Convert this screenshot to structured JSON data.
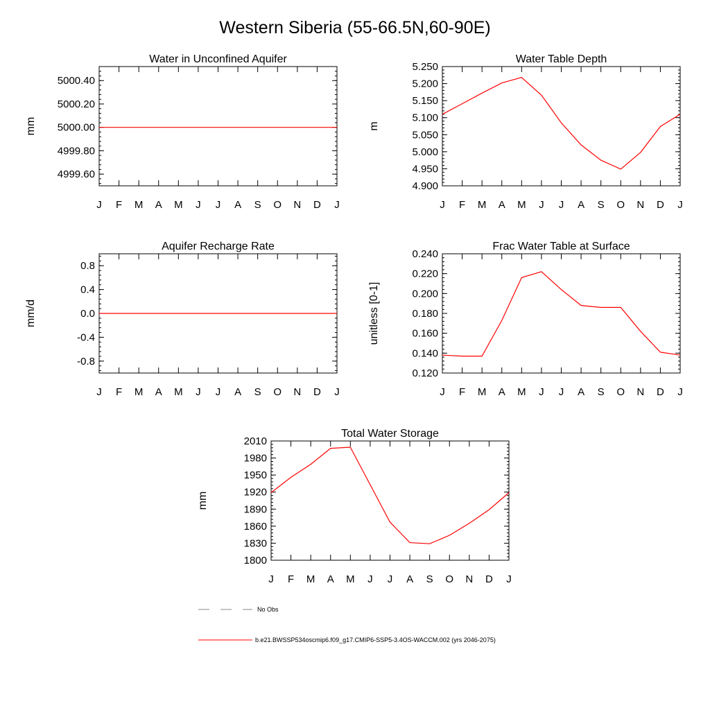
{
  "page": {
    "title": "Western Siberia (55-66.5N,60-90E)"
  },
  "months": [
    "J",
    "F",
    "M",
    "A",
    "M",
    "J",
    "J",
    "A",
    "S",
    "O",
    "N",
    "D",
    "J"
  ],
  "line_color": "#ff0000",
  "chart_data": [
    {
      "id": "water-unconfined-aquifer",
      "type": "line",
      "title": "Water in Unconfined Aquifer",
      "ylabel": "mm",
      "ylim": [
        4999.5,
        5000.52
      ],
      "yticks": [
        4999.6,
        4999.8,
        5000.0,
        5000.2,
        5000.4
      ],
      "ytick_labels": [
        "4999.60",
        "4999.80",
        "5000.00",
        "5000.20",
        "5000.40"
      ],
      "values": [
        5000.0,
        5000.0,
        5000.0,
        5000.0,
        5000.0,
        5000.0,
        5000.0,
        5000.0,
        5000.0,
        5000.0,
        5000.0,
        5000.0,
        5000.0
      ]
    },
    {
      "id": "water-table-depth",
      "type": "line",
      "title": "Water Table Depth",
      "ylabel": "m",
      "ylim": [
        4.9,
        5.25
      ],
      "yticks": [
        4.9,
        4.95,
        5.0,
        5.05,
        5.1,
        5.15,
        5.2,
        5.25
      ],
      "ytick_labels": [
        "4.900",
        "4.950",
        "5.000",
        "5.050",
        "5.100",
        "5.150",
        "5.200",
        "5.250"
      ],
      "values": [
        5.11,
        5.141,
        5.172,
        5.202,
        5.218,
        5.166,
        5.085,
        5.02,
        4.975,
        4.949,
        4.998,
        5.074,
        5.11
      ]
    },
    {
      "id": "aquifer-recharge-rate",
      "type": "line",
      "title": "Aquifer Recharge Rate",
      "ylabel": "mm/d",
      "ylim": [
        -1.0,
        1.0
      ],
      "yticks": [
        -0.8,
        -0.4,
        0.0,
        0.4,
        0.8
      ],
      "ytick_labels": [
        "-0.8",
        "-0.4",
        "0.0",
        "0.4",
        "0.8"
      ],
      "values": [
        0,
        0,
        0,
        0,
        0,
        0,
        0,
        0,
        0,
        0,
        0,
        0,
        0
      ]
    },
    {
      "id": "frac-water-table-surface",
      "type": "line",
      "title": "Frac Water Table at Surface",
      "ylabel": "unitless [0-1]",
      "ylim": [
        0.12,
        0.24
      ],
      "yticks": [
        0.12,
        0.14,
        0.16,
        0.18,
        0.2,
        0.22,
        0.24
      ],
      "ytick_labels": [
        "0.120",
        "0.140",
        "0.160",
        "0.180",
        "0.200",
        "0.220",
        "0.240"
      ],
      "values": [
        0.138,
        0.137,
        0.137,
        0.173,
        0.216,
        0.222,
        0.204,
        0.188,
        0.186,
        0.186,
        0.162,
        0.141,
        0.138
      ]
    },
    {
      "id": "total-water-storage",
      "type": "line",
      "title": "Total Water Storage",
      "ylabel": "mm",
      "ylim": [
        1800,
        2010
      ],
      "yticks": [
        1800,
        1830,
        1860,
        1890,
        1920,
        1950,
        1980,
        2010
      ],
      "ytick_labels": [
        "1800",
        "1830",
        "1860",
        "1890",
        "1920",
        "1950",
        "1980",
        "2010"
      ],
      "values": [
        1919,
        1946,
        1969,
        1997,
        1999,
        1933,
        1867,
        1831,
        1829,
        1844,
        1865,
        1889,
        1919
      ]
    }
  ],
  "legend": {
    "obs_label": "No Obs",
    "obs_color": "#888888",
    "model_label": "b.e21.BWSSP534oscmip6.f09_g17.CMIP6-SSP5-3.4OS-WACCM.002 (yrs 2046-2075)",
    "model_color": "#ff0000"
  }
}
